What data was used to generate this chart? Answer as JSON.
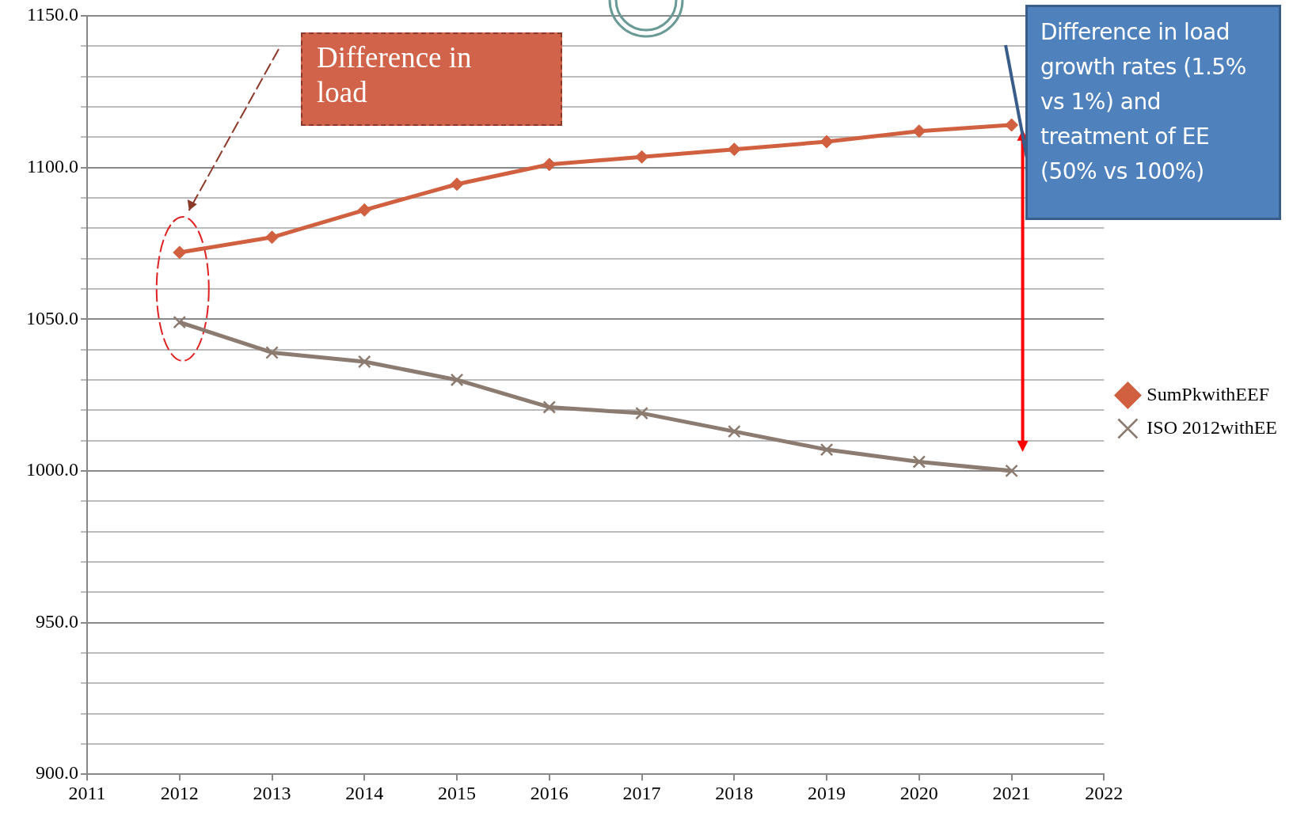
{
  "chart_data": {
    "type": "line",
    "x": [
      2012,
      2013,
      2014,
      2015,
      2016,
      2017,
      2018,
      2019,
      2020,
      2021
    ],
    "series": [
      {
        "name": "SumPkwithEEF",
        "color": "#d0603f",
        "marker": "diamond",
        "values": [
          1072,
          1077,
          1086,
          1094.5,
          1101,
          1103.5,
          1106,
          1108.5,
          1112,
          1114
        ]
      },
      {
        "name": "ISO 2012withEE",
        "color": "#8c7b70",
        "marker": "cross",
        "values": [
          1049,
          1039,
          1036,
          1030,
          1021,
          1019,
          1013,
          1007,
          1003,
          1000
        ]
      }
    ],
    "xlim": [
      2011,
      2022
    ],
    "xticks": [
      2011,
      2012,
      2013,
      2014,
      2015,
      2016,
      2017,
      2018,
      2019,
      2020,
      2021,
      2022
    ],
    "ylim": [
      900,
      1150
    ],
    "yticks": [
      {
        "value": 900,
        "label": "900.0"
      },
      {
        "value": 910,
        "label": null
      },
      {
        "value": 920,
        "label": null
      },
      {
        "value": 930,
        "label": null
      },
      {
        "value": 940,
        "label": null
      },
      {
        "value": 950,
        "label": "950.0"
      },
      {
        "value": 960,
        "label": null
      },
      {
        "value": 970,
        "label": null
      },
      {
        "value": 980,
        "label": null
      },
      {
        "value": 990,
        "label": null
      },
      {
        "value": 1000,
        "label": "1000.0"
      },
      {
        "value": 1010,
        "label": null
      },
      {
        "value": 1020,
        "label": null
      },
      {
        "value": 1030,
        "label": null
      },
      {
        "value": 1040,
        "label": null
      },
      {
        "value": 1050,
        "label": "1050.0"
      },
      {
        "value": 1060,
        "label": null
      },
      {
        "value": 1070,
        "label": null
      },
      {
        "value": 1080,
        "label": null
      },
      {
        "value": 1090,
        "label": null
      },
      {
        "value": 1100,
        "label": "1100.0"
      },
      {
        "value": 1110,
        "label": null
      },
      {
        "value": 1120,
        "label": null
      },
      {
        "value": 1130,
        "label": null
      },
      {
        "value": 1140,
        "label": null
      },
      {
        "value": 1150,
        "label": "1150.0"
      }
    ],
    "grid": "y",
    "legend": "right",
    "line_style": "solid",
    "annotations": [
      "Difference in load",
      "Difference in load growth rates (1.5% vs 1%) and treatment of EE (50% vs 100%)"
    ]
  }
}
